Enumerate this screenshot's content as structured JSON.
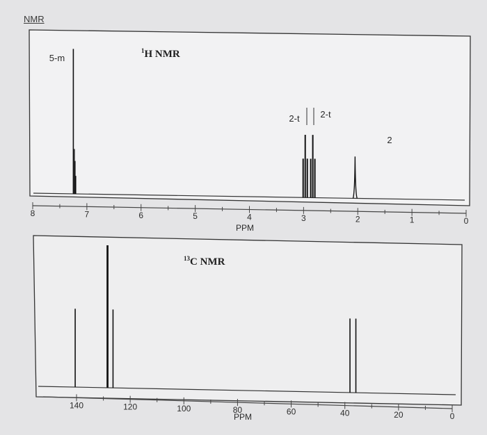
{
  "page": {
    "title": "NMR"
  },
  "chart_data": [
    {
      "type": "line",
      "title": "H NMR",
      "title_superscript": "1",
      "xlabel": "PPM",
      "xlim": [
        8,
        0
      ],
      "ticks": [
        "8",
        "7",
        "6",
        "5",
        "4",
        "3",
        "2",
        "1",
        "0"
      ],
      "peaks": [
        {
          "x": 7.25,
          "height": 0.97,
          "label": "5-m",
          "multiplet": true
        },
        {
          "x": 2.97,
          "height": 0.42,
          "label": "2-t",
          "multiplet": true
        },
        {
          "x": 2.83,
          "height": 0.42,
          "label": "2-t",
          "multiplet": true
        },
        {
          "x": 2.05,
          "height": 0.28,
          "label": "2",
          "multiplet": false
        }
      ],
      "grid": false
    },
    {
      "type": "bar",
      "title": "C NMR",
      "title_superscript": "13",
      "xlabel": "PPM",
      "xlim": [
        145,
        0
      ],
      "ticks": [
        "140",
        "120",
        "100",
        "80",
        "60",
        "40",
        "20",
        "0"
      ],
      "peaks": [
        {
          "x": 140.5,
          "height": 0.55
        },
        {
          "x": 128.6,
          "height": 1.0
        },
        {
          "x": 128.3,
          "height": 1.0
        },
        {
          "x": 126.4,
          "height": 0.55
        },
        {
          "x": 38.1,
          "height": 0.52
        },
        {
          "x": 35.9,
          "height": 0.52
        }
      ],
      "grid": false
    }
  ]
}
